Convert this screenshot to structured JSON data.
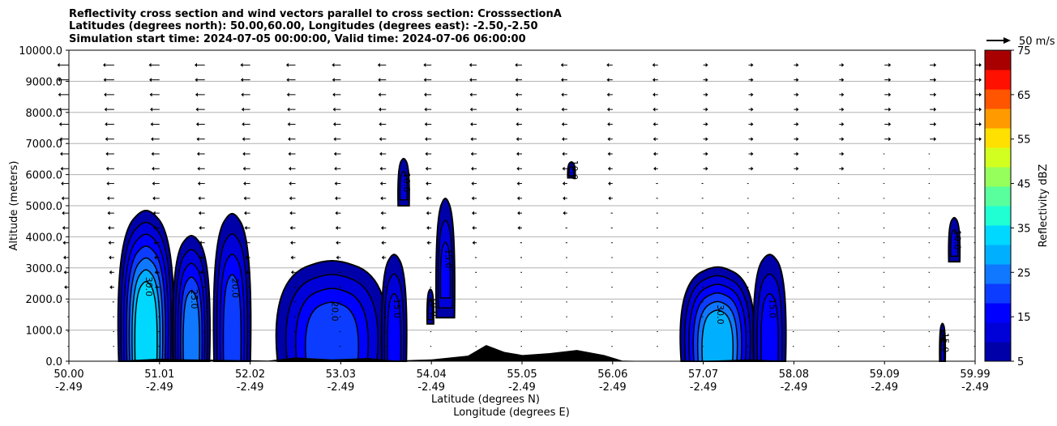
{
  "chart_data": {
    "type": "contour",
    "title_lines": [
      "Reflectivity cross section and wind vectors parallel to cross section: CrosssectionA",
      "Latitudes (degrees north): 50.00,60.00, Longitudes (degrees east): -2.50,-2.50",
      "Simulation start time: 2024-07-05 00:00:00, Valid time: 2024-07-06 06:00:00"
    ],
    "ylabel": "Altitude (meters)",
    "xlabel_lines": [
      "Latitude (degrees N)",
      "Longitude (degrees E)"
    ],
    "ylim": [
      0,
      10000
    ],
    "xlim": [
      50.0,
      59.99
    ],
    "grid": "horizontal",
    "y_ticks": [
      "0.0",
      "1000.0",
      "2000.0",
      "3000.0",
      "4000.0",
      "5000.0",
      "6000.0",
      "7000.0",
      "8000.0",
      "9000.0",
      "10000.0"
    ],
    "x_ticks": [
      {
        "lat": "50.00",
        "lon": "-2.49"
      },
      {
        "lat": "51.01",
        "lon": "-2.49"
      },
      {
        "lat": "52.02",
        "lon": "-2.49"
      },
      {
        "lat": "53.03",
        "lon": "-2.49"
      },
      {
        "lat": "54.04",
        "lon": "-2.49"
      },
      {
        "lat": "55.05",
        "lon": "-2.49"
      },
      {
        "lat": "56.06",
        "lon": "-2.49"
      },
      {
        "lat": "57.07",
        "lon": "-2.49"
      },
      {
        "lat": "58.08",
        "lon": "-2.49"
      },
      {
        "lat": "59.09",
        "lon": "-2.49"
      },
      {
        "lat": "59.99",
        "lon": "-2.49"
      }
    ],
    "colorbar": {
      "label": "Reflectivity dBZ",
      "min": 5,
      "max": 75,
      "ticks": [
        "5",
        "15",
        "25",
        "35",
        "45",
        "55",
        "65",
        "75"
      ],
      "colors": [
        "#0000a8",
        "#0000d8",
        "#0000ff",
        "#0c3cff",
        "#0f78ff",
        "#00b0ff",
        "#00d8ff",
        "#20ffd4",
        "#58ff9c",
        "#96ff5c",
        "#d2ff20",
        "#ffe000",
        "#ff9a00",
        "#ff5400",
        "#ff1000",
        "#a80000"
      ]
    },
    "wind_key": {
      "label": "50 m/s"
    },
    "terrain_color": "#000000",
    "cells": [
      {
        "lat_min": 50.55,
        "lat_max": 51.15,
        "top": 4800,
        "max_dbz": 35
      },
      {
        "lat_min": 51.15,
        "lat_max": 51.55,
        "top": 4000,
        "max_dbz": 25
      },
      {
        "lat_min": 51.6,
        "lat_max": 52.0,
        "top": 4700,
        "max_dbz": 20
      },
      {
        "lat_min": 52.3,
        "lat_max": 53.5,
        "top": 3200,
        "max_dbz": 20
      },
      {
        "lat_min": 53.45,
        "lat_max": 53.72,
        "top": 3400,
        "max_dbz": 15
      },
      {
        "lat_min": 53.63,
        "lat_max": 53.75,
        "top": 6500,
        "base": 5000,
        "max_dbz": 10
      },
      {
        "lat_min": 53.95,
        "lat_max": 54.02,
        "top": 2300,
        "base": 1200,
        "max_dbz": 10
      },
      {
        "lat_min": 54.05,
        "lat_max": 54.25,
        "top": 5200,
        "base": 1400,
        "max_dbz": 15
      },
      {
        "lat_min": 55.5,
        "lat_max": 55.58,
        "top": 6400,
        "base": 5900,
        "max_dbz": 10
      },
      {
        "lat_min": 56.75,
        "lat_max": 57.55,
        "top": 3000,
        "max_dbz": 30
      },
      {
        "lat_min": 57.55,
        "lat_max": 57.9,
        "top": 3400,
        "max_dbz": 15
      },
      {
        "lat_min": 59.6,
        "lat_max": 59.66,
        "top": 1200,
        "max_dbz": 15
      },
      {
        "lat_min": 59.7,
        "lat_max": 59.82,
        "top": 4600,
        "base": 3200,
        "max_dbz": 10
      }
    ],
    "contour_labels": [
      "5.0",
      "10.0",
      "15.0",
      "20.0",
      "25.0",
      "30.0"
    ]
  }
}
